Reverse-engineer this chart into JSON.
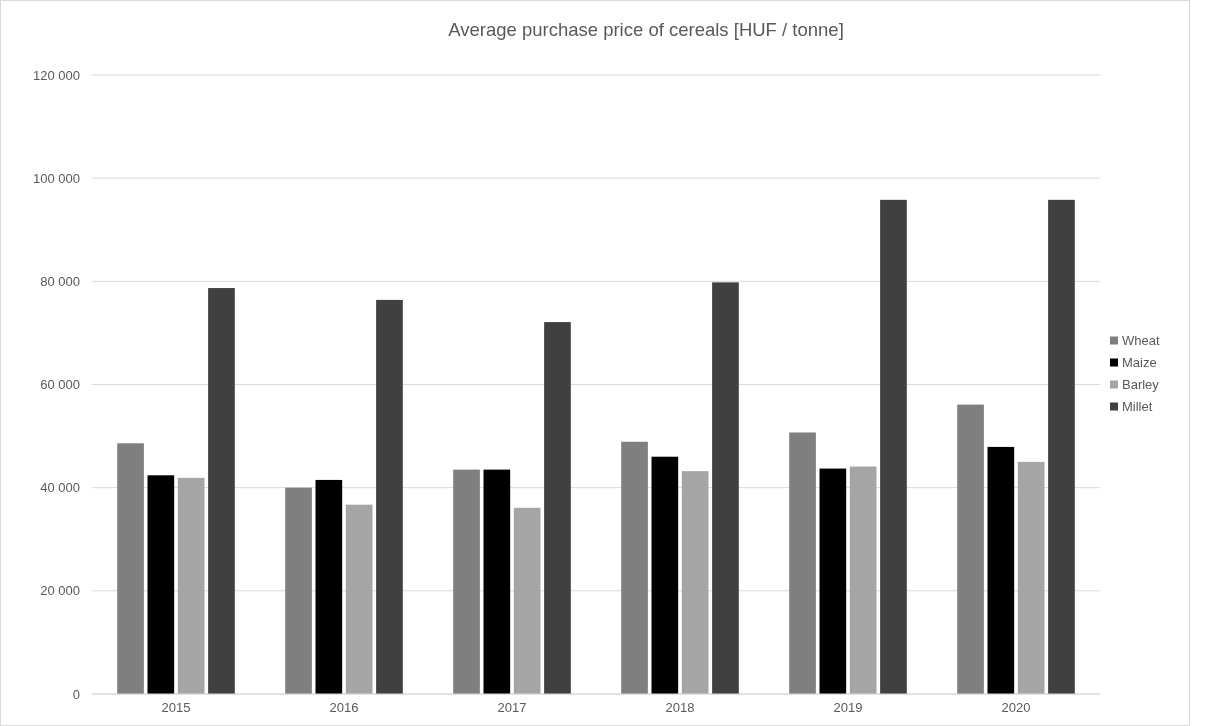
{
  "chart_data": {
    "type": "bar",
    "title": "Average purchase price of cereals [HUF / tonne]",
    "categories": [
      "2015",
      "2016",
      "2017",
      "2018",
      "2019",
      "2020"
    ],
    "series": [
      {
        "name": "Wheat",
        "color": "#7f7f7f",
        "values": [
          48600,
          40000,
          43500,
          48900,
          50700,
          56100
        ]
      },
      {
        "name": "Maize",
        "color": "#000000",
        "values": [
          42400,
          41500,
          43500,
          46000,
          43700,
          47900
        ]
      },
      {
        "name": "Barley",
        "color": "#a5a5a5",
        "values": [
          41900,
          36700,
          36100,
          43200,
          44100,
          45000
        ]
      },
      {
        "name": "Millet",
        "color": "#404040",
        "values": [
          78700,
          76400,
          72100,
          79800,
          95800,
          95800
        ]
      }
    ],
    "ylim": [
      0,
      120000
    ],
    "yticks": [
      {
        "value": 0,
        "label": "0"
      },
      {
        "value": 20000,
        "label": "20 000"
      },
      {
        "value": 40000,
        "label": "40 000"
      },
      {
        "value": 60000,
        "label": "60 000"
      },
      {
        "value": 80000,
        "label": "80 000"
      },
      {
        "value": 100000,
        "label": "100 000"
      },
      {
        "value": 120000,
        "label": "120 000"
      }
    ],
    "grid": "y",
    "legend": "right"
  }
}
